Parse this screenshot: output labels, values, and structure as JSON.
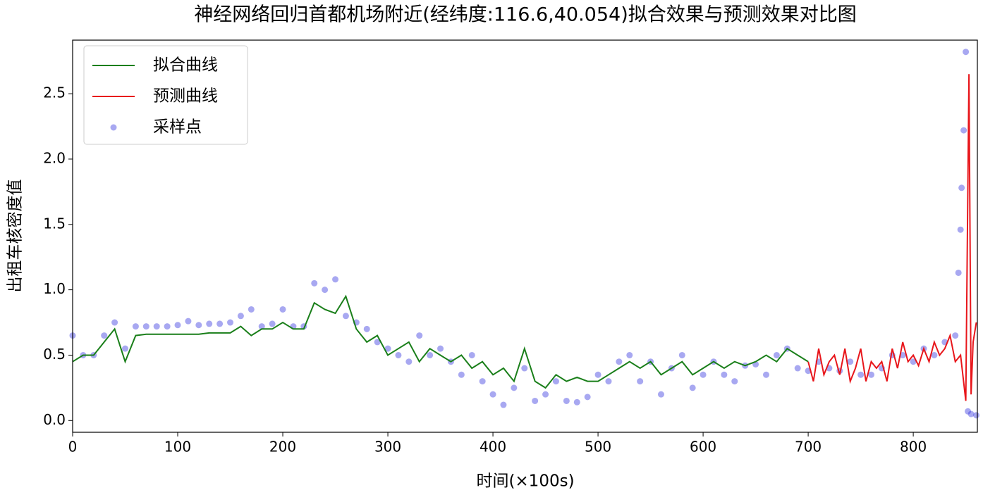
{
  "chart_data": {
    "type": "line",
    "title": "神经网络回归首都机场附近(经纬度:116.6,40.054)拟合效果与预测效果对比图",
    "x_label": "时间(×100s)",
    "y_label": "出租车核密度值",
    "xlim": [
      0,
      861
    ],
    "ylim": [
      -0.09,
      2.91
    ],
    "xticks": [
      0,
      100,
      200,
      300,
      400,
      500,
      600,
      700,
      800
    ],
    "yticks": [
      {
        "value": 0,
        "label": "0.0"
      },
      0.5,
      {
        "value": 1,
        "label": "1.0"
      },
      1.5,
      {
        "value": 2,
        "label": "2.0"
      },
      2.5
    ],
    "legend": "upper left",
    "series": [
      {
        "name": "拟合曲线",
        "type": "line",
        "color": "#1a7f1a",
        "x": [
          0,
          10,
          20,
          30,
          40,
          50,
          60,
          70,
          80,
          90,
          100,
          110,
          120,
          130,
          140,
          150,
          160,
          170,
          180,
          190,
          200,
          210,
          220,
          230,
          240,
          250,
          260,
          270,
          280,
          290,
          300,
          310,
          320,
          330,
          340,
          350,
          360,
          370,
          380,
          390,
          400,
          410,
          420,
          430,
          440,
          450,
          460,
          470,
          480,
          490,
          500,
          510,
          520,
          530,
          540,
          550,
          560,
          570,
          580,
          590,
          600,
          610,
          620,
          630,
          640,
          650,
          660,
          670,
          680,
          690,
          700
        ],
        "values": [
          0.45,
          0.5,
          0.5,
          0.6,
          0.7,
          0.45,
          0.65,
          0.66,
          0.66,
          0.66,
          0.66,
          0.66,
          0.66,
          0.67,
          0.67,
          0.67,
          0.72,
          0.65,
          0.7,
          0.7,
          0.75,
          0.7,
          0.7,
          0.9,
          0.85,
          0.82,
          0.95,
          0.7,
          0.6,
          0.65,
          0.5,
          0.55,
          0.6,
          0.45,
          0.55,
          0.5,
          0.45,
          0.5,
          0.4,
          0.45,
          0.35,
          0.4,
          0.3,
          0.55,
          0.3,
          0.25,
          0.35,
          0.3,
          0.33,
          0.3,
          0.3,
          0.35,
          0.4,
          0.45,
          0.4,
          0.45,
          0.35,
          0.4,
          0.45,
          0.35,
          0.4,
          0.45,
          0.4,
          0.45,
          0.42,
          0.45,
          0.5,
          0.45,
          0.55,
          0.5,
          0.45
        ]
      },
      {
        "name": "预测曲线",
        "type": "line",
        "color": "#e8161b",
        "x": [
          700,
          705,
          710,
          715,
          720,
          725,
          730,
          735,
          740,
          745,
          750,
          755,
          760,
          765,
          770,
          775,
          780,
          785,
          790,
          795,
          800,
          805,
          810,
          815,
          820,
          825,
          830,
          835,
          840,
          845,
          850,
          853,
          855,
          857,
          860
        ],
        "values": [
          0.45,
          0.3,
          0.55,
          0.35,
          0.45,
          0.5,
          0.35,
          0.55,
          0.3,
          0.4,
          0.55,
          0.3,
          0.45,
          0.4,
          0.45,
          0.3,
          0.55,
          0.4,
          0.6,
          0.45,
          0.5,
          0.42,
          0.55,
          0.45,
          0.6,
          0.5,
          0.55,
          0.65,
          0.45,
          0.5,
          0.15,
          2.65,
          0.2,
          0.6,
          0.75
        ]
      },
      {
        "name": "采样点",
        "type": "scatter",
        "color": "#3f3fe0",
        "x": [
          0,
          10,
          20,
          30,
          40,
          50,
          60,
          70,
          80,
          90,
          100,
          110,
          120,
          130,
          140,
          150,
          160,
          170,
          180,
          190,
          200,
          210,
          220,
          230,
          240,
          250,
          260,
          270,
          280,
          290,
          300,
          310,
          320,
          330,
          340,
          350,
          360,
          370,
          380,
          390,
          400,
          410,
          420,
          430,
          440,
          450,
          460,
          470,
          480,
          490,
          500,
          510,
          520,
          530,
          540,
          550,
          560,
          570,
          580,
          590,
          600,
          610,
          620,
          630,
          640,
          650,
          660,
          670,
          680,
          690,
          700,
          710,
          720,
          730,
          740,
          750,
          760,
          770,
          780,
          790,
          800,
          810,
          820,
          830,
          840,
          843,
          845,
          846,
          848,
          850,
          852,
          855,
          860
        ],
        "values": [
          0.65,
          0.5,
          0.5,
          0.65,
          0.75,
          0.55,
          0.72,
          0.72,
          0.72,
          0.72,
          0.73,
          0.76,
          0.73,
          0.74,
          0.74,
          0.75,
          0.8,
          0.85,
          0.72,
          0.74,
          0.85,
          0.72,
          0.72,
          1.05,
          1.0,
          1.08,
          0.8,
          0.75,
          0.7,
          0.6,
          0.55,
          0.5,
          0.45,
          0.65,
          0.5,
          0.55,
          0.45,
          0.35,
          0.5,
          0.3,
          0.2,
          0.12,
          0.25,
          0.4,
          0.15,
          0.2,
          0.3,
          0.15,
          0.14,
          0.18,
          0.35,
          0.3,
          0.45,
          0.5,
          0.3,
          0.45,
          0.2,
          0.4,
          0.5,
          0.25,
          0.35,
          0.45,
          0.35,
          0.3,
          0.42,
          0.43,
          0.35,
          0.5,
          0.55,
          0.4,
          0.38,
          0.45,
          0.4,
          0.38,
          0.45,
          0.35,
          0.35,
          0.4,
          0.5,
          0.5,
          0.45,
          0.55,
          0.5,
          0.6,
          0.65,
          1.13,
          1.46,
          1.78,
          2.22,
          2.82,
          0.07,
          0.05,
          0.04
        ]
      }
    ]
  }
}
